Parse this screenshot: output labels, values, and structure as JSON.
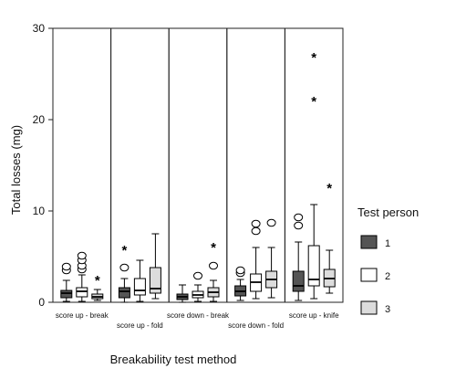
{
  "chart_data": {
    "type": "box",
    "xlabel": "Breakability test method",
    "ylabel": "Total losses (mg)",
    "ylim": [
      0,
      30
    ],
    "yticks": [
      0,
      10,
      20,
      30
    ],
    "categories": [
      "score up - break",
      "score up - fold",
      "score down - break",
      "score down - fold",
      "score up - knife"
    ],
    "legend": {
      "title": "Test person",
      "position": "right",
      "entries": [
        {
          "name": "1",
          "color": "#555555"
        },
        {
          "name": "2",
          "color": "#ffffff"
        },
        {
          "name": "3",
          "color": "#dcdcdc"
        }
      ]
    },
    "series": [
      {
        "name": "1",
        "boxes": [
          {
            "category": "score up - break",
            "min": 0.1,
            "q1": 0.5,
            "median": 1.0,
            "q3": 1.3,
            "max": 2.4,
            "outliers": [
              3.5,
              3.9
            ],
            "extremes": []
          },
          {
            "category": "score up - fold",
            "min": 0.0,
            "q1": 0.5,
            "median": 1.2,
            "q3": 1.6,
            "max": 2.6,
            "outliers": [
              3.8
            ],
            "extremes": [
              5.8
            ]
          },
          {
            "category": "score down - break",
            "min": 0.0,
            "q1": 0.3,
            "median": 0.6,
            "q3": 0.9,
            "max": 1.9,
            "outliers": [],
            "extremes": []
          },
          {
            "category": "score down - fold",
            "min": 0.2,
            "q1": 0.7,
            "median": 1.2,
            "q3": 1.8,
            "max": 2.5,
            "outliers": [
              3.2,
              3.5
            ],
            "extremes": []
          },
          {
            "category": "score up - knife",
            "min": 0.2,
            "q1": 1.2,
            "median": 1.8,
            "q3": 3.4,
            "max": 6.6,
            "outliers": [
              8.4,
              9.3
            ],
            "extremes": []
          }
        ]
      },
      {
        "name": "2",
        "boxes": [
          {
            "category": "score up - break",
            "min": 0.1,
            "q1": 0.6,
            "median": 1.2,
            "q3": 1.6,
            "max": 3.0,
            "outliers": [
              3.6,
              4.0,
              4.6,
              5.1
            ],
            "extremes": []
          },
          {
            "category": "score up - fold",
            "min": 0.1,
            "q1": 0.8,
            "median": 1.3,
            "q3": 2.6,
            "max": 4.6,
            "outliers": [],
            "extremes": []
          },
          {
            "category": "score down - break",
            "min": 0.1,
            "q1": 0.5,
            "median": 0.8,
            "q3": 1.2,
            "max": 1.9,
            "outliers": [
              2.9
            ],
            "extremes": []
          },
          {
            "category": "score down - fold",
            "min": 0.4,
            "q1": 1.2,
            "median": 2.2,
            "q3": 3.1,
            "max": 6.0,
            "outliers": [
              7.8,
              8.6
            ],
            "extremes": []
          },
          {
            "category": "score up - knife",
            "min": 0.4,
            "q1": 1.8,
            "median": 2.5,
            "q3": 6.2,
            "max": 10.7,
            "outliers": [],
            "extremes": [
              22.1,
              26.9
            ]
          }
        ]
      },
      {
        "name": "3",
        "boxes": [
          {
            "category": "score up - break",
            "min": 0.2,
            "q1": 0.4,
            "median": 0.6,
            "q3": 0.9,
            "max": 1.4,
            "outliers": [],
            "extremes": [
              2.5
            ]
          },
          {
            "category": "score up - fold",
            "min": 0.4,
            "q1": 1.0,
            "median": 1.5,
            "q3": 3.8,
            "max": 7.5,
            "outliers": [],
            "extremes": []
          },
          {
            "category": "score down - break",
            "min": 0.1,
            "q1": 0.6,
            "median": 1.1,
            "q3": 1.6,
            "max": 2.4,
            "outliers": [
              4.0
            ],
            "extremes": [
              6.1
            ]
          },
          {
            "category": "score down - fold",
            "min": 0.5,
            "q1": 1.6,
            "median": 2.5,
            "q3": 3.4,
            "max": 6.0,
            "outliers": [
              8.7
            ],
            "extremes": []
          },
          {
            "category": "score up - knife",
            "min": 1.0,
            "q1": 1.7,
            "median": 2.6,
            "q3": 3.6,
            "max": 5.7,
            "outliers": [],
            "extremes": [
              12.6
            ]
          }
        ]
      }
    ]
  }
}
